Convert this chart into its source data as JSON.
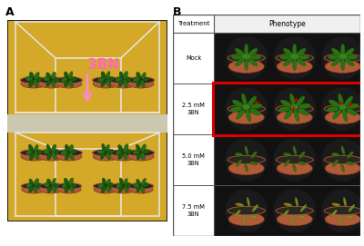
{
  "panel_a_label": "A",
  "panel_b_label": "B",
  "panel_a_bg_top": "#e8b830",
  "panel_a_bg_bot": "#c8a828",
  "panel_a_shelf_color": "#d8d0b8",
  "panel_a_border": "#333333",
  "panel_a_text": "3BN",
  "panel_a_text_color": "#ff69b4",
  "panel_a_arrow_color": "#ff88cc",
  "panel_b_header_treatment": "Treatment",
  "panel_b_header_phenotype": "Phenotype",
  "panel_b_rows": [
    "Mock",
    "2.5 mM\n3BN",
    "5.0 mM\n3BN",
    "7.5 mM\n3BN"
  ],
  "panel_b_red_row": 1,
  "pot_color": "#b8624a",
  "pot_rim": "#c87858",
  "soil_dark": "#1c1c1c",
  "soil_mid": "#2a2a2a",
  "plant_green1": "#3a8c1a",
  "plant_green2": "#4a9c2a",
  "plant_stressed": "#5a8a1a",
  "plant_damaged": "#8a9a4a",
  "table_line_color": "#888888",
  "red_rect_color": "#dd0000",
  "bg_color": "#ffffff",
  "figsize": [
    4.0,
    2.71
  ],
  "dpi": 100
}
